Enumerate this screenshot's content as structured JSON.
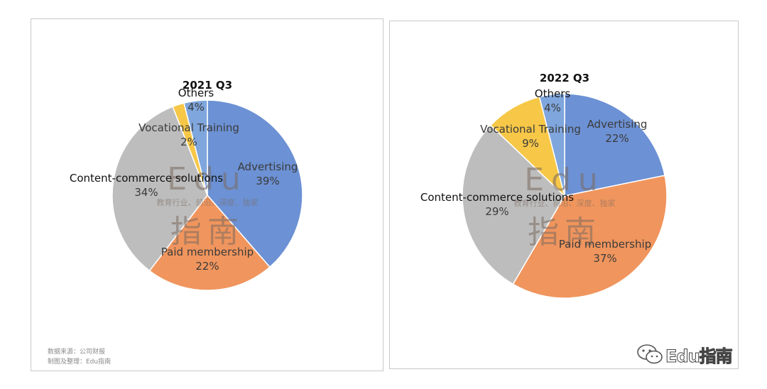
{
  "chart_data": [
    {
      "type": "pie",
      "title": "2021 Q3",
      "slices": [
        {
          "label": "Advertising",
          "value": 39,
          "pct_label": "39%",
          "color": "#6c91d4"
        },
        {
          "label": "Paid membership",
          "value": 22,
          "pct_label": "22%",
          "color": "#f0955d"
        },
        {
          "label": "Content-commerce solutions",
          "value": 34,
          "pct_label": "34%",
          "color": "#bdbdbd"
        },
        {
          "label": "Vocational Training",
          "value": 2,
          "pct_label": "2%",
          "color": "#f7c747"
        },
        {
          "label": "Others",
          "value": 4,
          "pct_label": "4%",
          "color": "#7fa6dd"
        }
      ],
      "source_lines": [
        "数据来源：公司财报",
        "制图及整理：Edu指南"
      ]
    },
    {
      "type": "pie",
      "title": "2022 Q3",
      "slices": [
        {
          "label": "Advertising",
          "value": 22,
          "pct_label": "22%",
          "color": "#6c91d4"
        },
        {
          "label": "Paid membership",
          "value": 37,
          "pct_label": "37%",
          "color": "#f0955d"
        },
        {
          "label": "Content-commerce solutions",
          "value": 29,
          "pct_label": "29%",
          "color": "#bdbdbd"
        },
        {
          "label": "Vocational Training",
          "value": 9,
          "pct_label": "9%",
          "color": "#f7c747"
        },
        {
          "label": "Others",
          "value": 4,
          "pct_label": "4%",
          "color": "#7fa6dd"
        }
      ]
    }
  ],
  "watermark": {
    "brand": "Edu",
    "tagline": "教育行业、前沿、深度、独家",
    "name": "指南"
  },
  "brand_badge": {
    "icon": "wechat-icon",
    "text": "Edu指南"
  }
}
